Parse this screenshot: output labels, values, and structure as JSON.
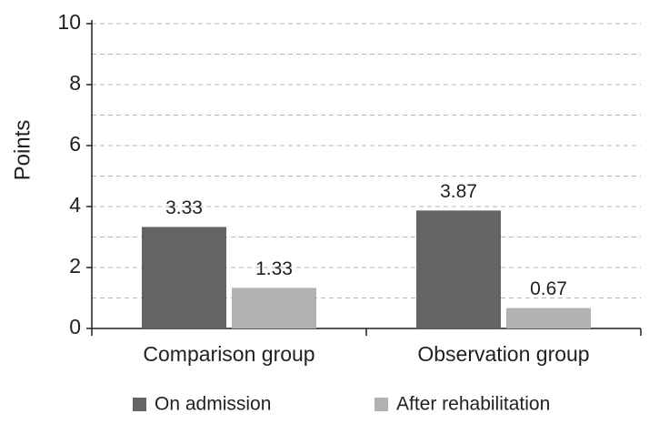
{
  "chart_data": {
    "type": "bar",
    "y_label": "Points",
    "categories": [
      "Comparison group",
      "Observation group"
    ],
    "series": [
      {
        "name": "On admission",
        "color": "#636466",
        "values": [
          3.33,
          3.87
        ]
      },
      {
        "name": "After rehabilitation",
        "color": "#b1b2b4",
        "values": [
          1.33,
          0.67
        ]
      }
    ],
    "ylim": [
      0,
      10
    ],
    "yticks": [
      0,
      2,
      4,
      6,
      8,
      10
    ],
    "minor_yticks": [
      1,
      3,
      5,
      7,
      9
    ],
    "grid": true,
    "legend": "bottom"
  }
}
